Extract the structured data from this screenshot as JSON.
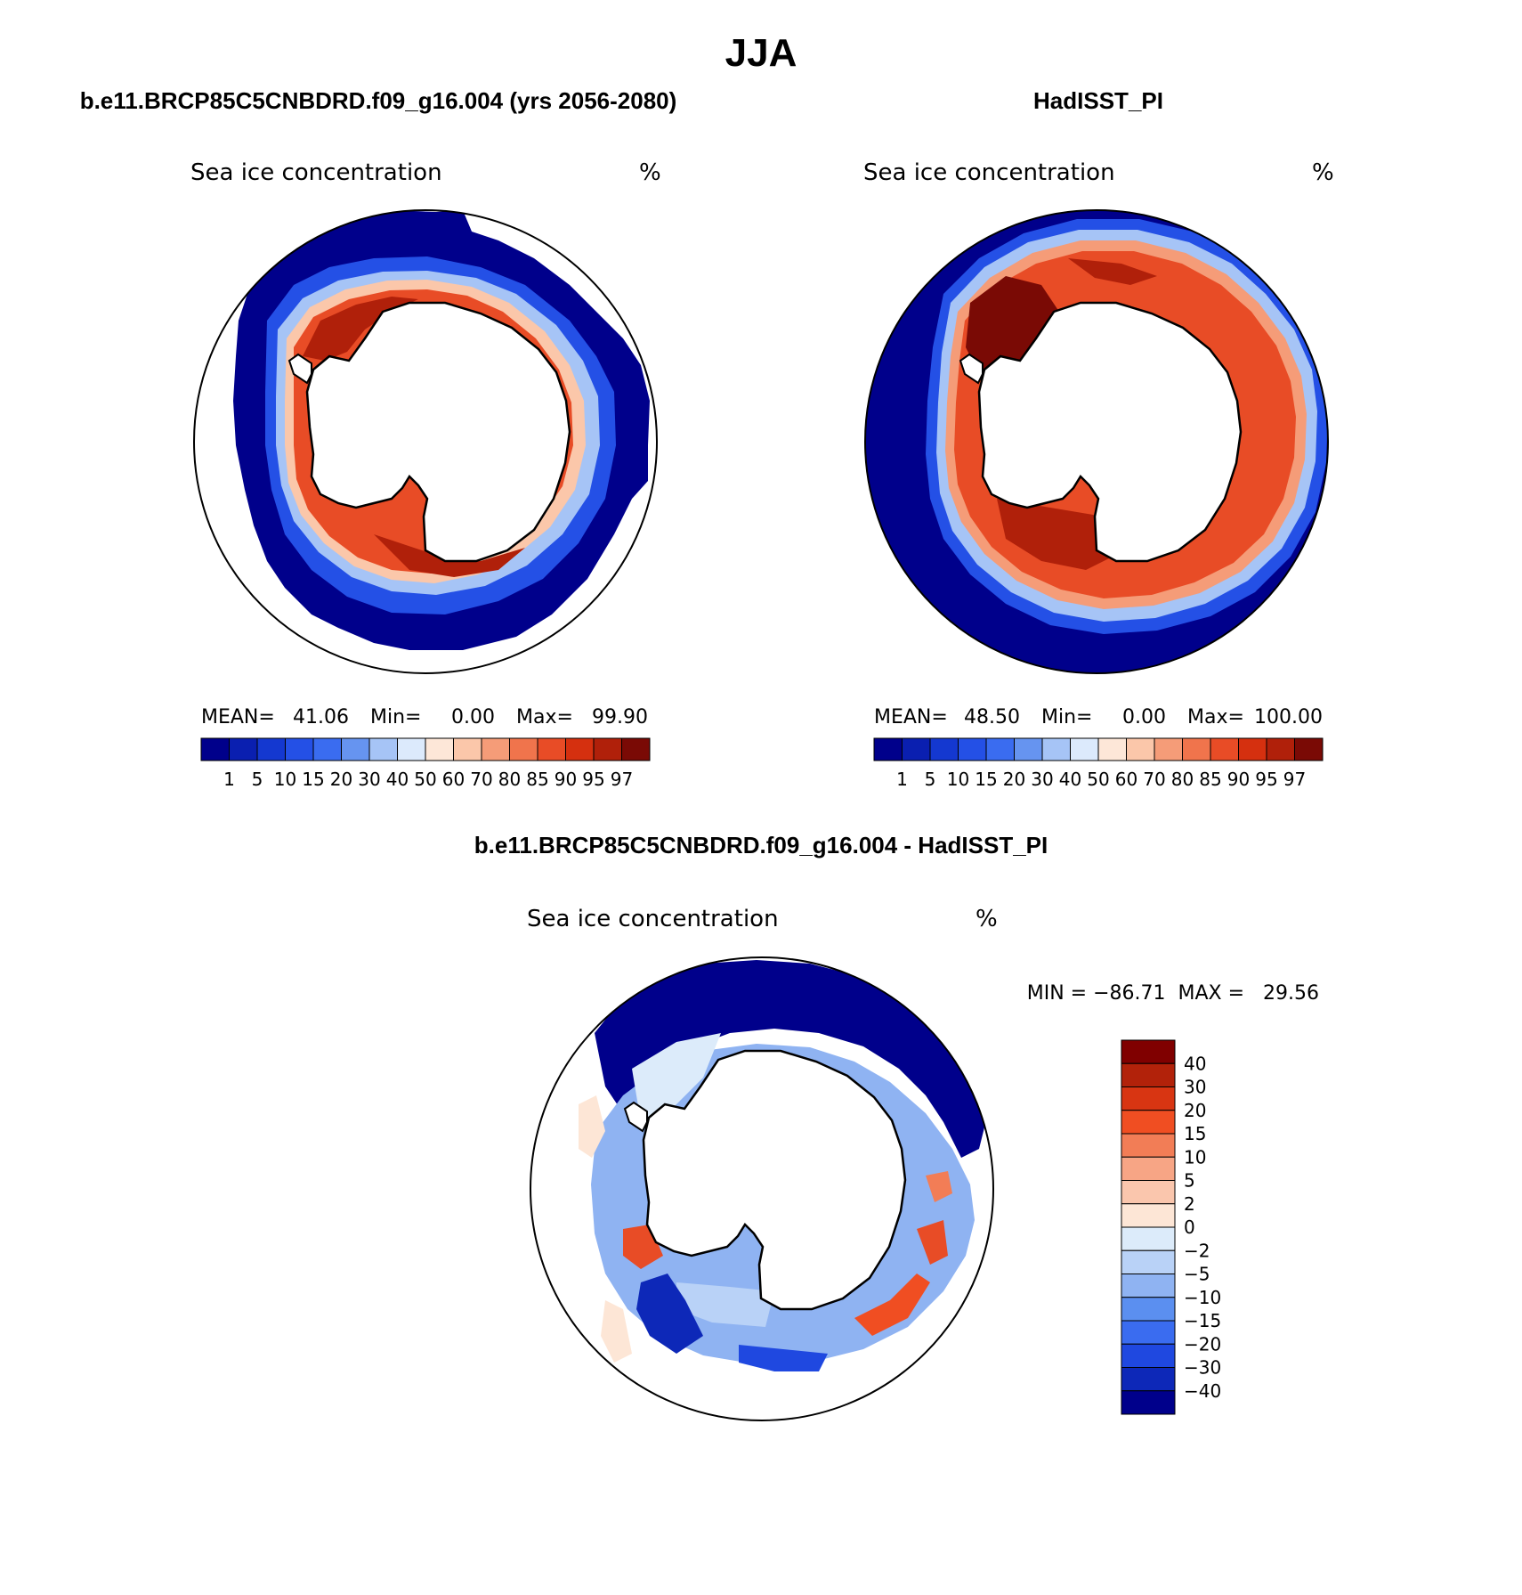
{
  "main_title": "JJA",
  "panels": [
    {
      "id": "model",
      "header": "b.e11.BRCP85C5CNBDRD.f09_g16.004 (yrs 2056-2080)",
      "variable": "Sea ice concentration",
      "units": "%",
      "stats": {
        "mean_label": "MEAN=",
        "mean": "41.06",
        "min_label": "Min=",
        "min": "0.00",
        "max_label": "Max=",
        "max": "99.90"
      }
    },
    {
      "id": "obs",
      "header": "HadISST_PI",
      "variable": "Sea ice concentration",
      "units": "%",
      "stats": {
        "mean_label": "MEAN=",
        "mean": "48.50",
        "min_label": "Min=",
        "min": "0.00",
        "max_label": "Max=",
        "max": "100.00"
      }
    },
    {
      "id": "diff",
      "header": "b.e11.BRCP85C5CNBDRD.f09_g16.004 - HadISST_PI",
      "variable": "Sea ice concentration",
      "units": "%",
      "stats_line": "MIN = −86.71  MAX =   29.56"
    }
  ],
  "abs_colorbar": {
    "colors": [
      "#00008b",
      "#0a1fb0",
      "#1438d0",
      "#2450e6",
      "#3a6cf0",
      "#6694f0",
      "#a6c4f6",
      "#dceafc",
      "#fde7d8",
      "#fbc7aa",
      "#f59c78",
      "#f0744c",
      "#e84c26",
      "#d5300f",
      "#b0200a",
      "#7a0a05"
    ],
    "labels": [
      "1",
      "5",
      "10",
      "15",
      "20",
      "30",
      "40",
      "50",
      "60",
      "70",
      "80",
      "85",
      "90",
      "95",
      "97"
    ]
  },
  "diff_colorbar": {
    "colors_top_to_bottom": [
      "#800000",
      "#b2220a",
      "#d83512",
      "#f04e22",
      "#f27d56",
      "#f7a585",
      "#fac6ad",
      "#fde6d6",
      "#dcebfa",
      "#b9d2f7",
      "#8fb3f2",
      "#5b8ff0",
      "#3a6cf0",
      "#1f48e0",
      "#0d28b8",
      "#00008b"
    ],
    "labels_top_to_bottom": [
      "40",
      "30",
      "20",
      "15",
      "10",
      "5",
      "2",
      "0",
      "−2",
      "−5",
      "−10",
      "−15",
      "−20",
      "−30",
      "−40"
    ]
  }
}
